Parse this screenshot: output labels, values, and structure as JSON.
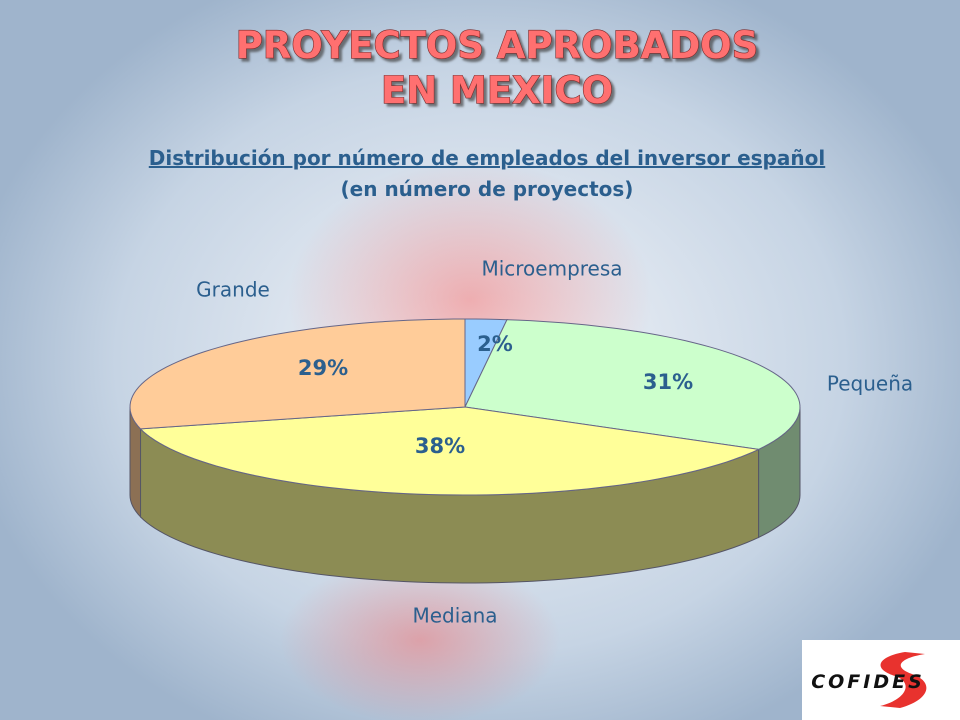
{
  "chart_data": {
    "type": "pie",
    "title": [
      "PROYECTOS APROBADOS",
      "EN MEXICO"
    ],
    "subtitle": [
      "Distribución por número de empleados del inversor español",
      "(en número de proyectos)"
    ],
    "categories": [
      "Microempresa",
      "Pequeña",
      "Mediana",
      "Grande"
    ],
    "values": [
      2,
      31,
      38,
      29
    ],
    "value_labels": [
      "2%",
      "31%",
      "38%",
      "29%"
    ],
    "colors": [
      "#99ccff",
      "#ccffcc",
      "#ffff99",
      "#ffcc99"
    ],
    "logo": "COFIDES"
  }
}
